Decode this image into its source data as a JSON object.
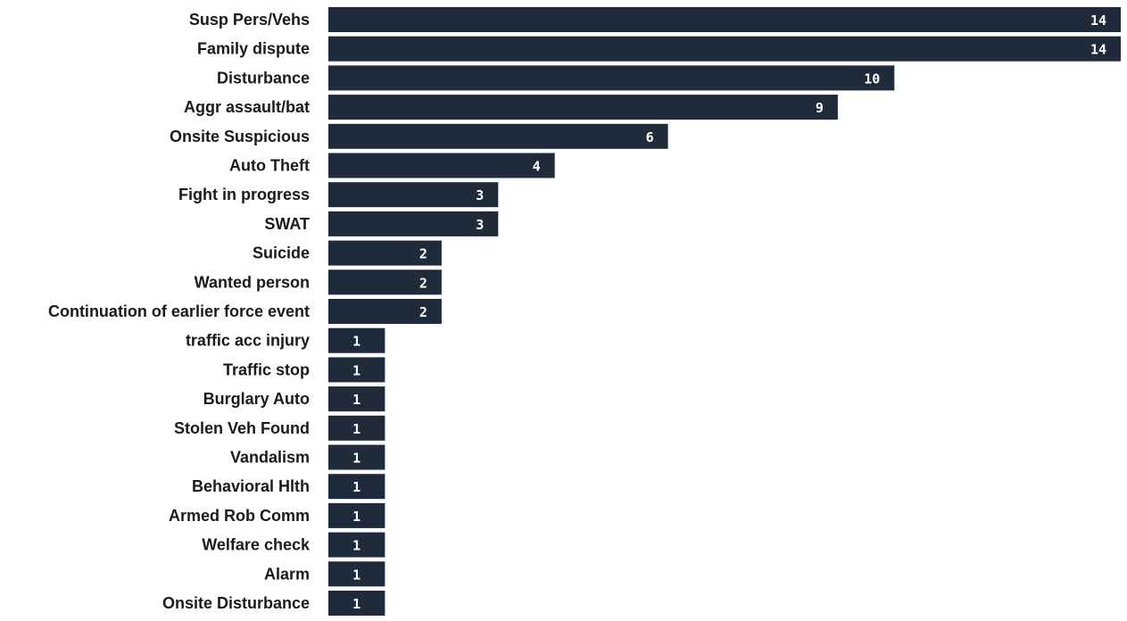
{
  "chart_data": {
    "type": "bar",
    "orientation": "horizontal",
    "categories": [
      "Susp Pers/Vehs",
      "Family dispute",
      "Disturbance",
      "Aggr assault/bat",
      "Onsite Suspicious",
      "Auto Theft",
      "Fight in progress",
      "SWAT",
      "Suicide",
      "Wanted person",
      "Continuation of earlier force event",
      "traffic acc injury",
      "Traffic stop",
      "Burglary Auto",
      "Stolen Veh Found",
      "Vandalism",
      "Behavioral Hlth",
      "Armed Rob Comm",
      "Welfare check",
      "Alarm",
      "Onsite Disturbance"
    ],
    "values": [
      14,
      14,
      10,
      9,
      6,
      4,
      3,
      3,
      2,
      2,
      2,
      1,
      1,
      1,
      1,
      1,
      1,
      1,
      1,
      1,
      1
    ],
    "title": "",
    "xlabel": "",
    "ylabel": "",
    "xlim": [
      0,
      14
    ],
    "grid": false,
    "legend": "none",
    "data_labels": "inside-end",
    "bar_color": "#1f2b3a",
    "label_color": "#1a1a1a",
    "value_label_color": "#ffffff"
  }
}
